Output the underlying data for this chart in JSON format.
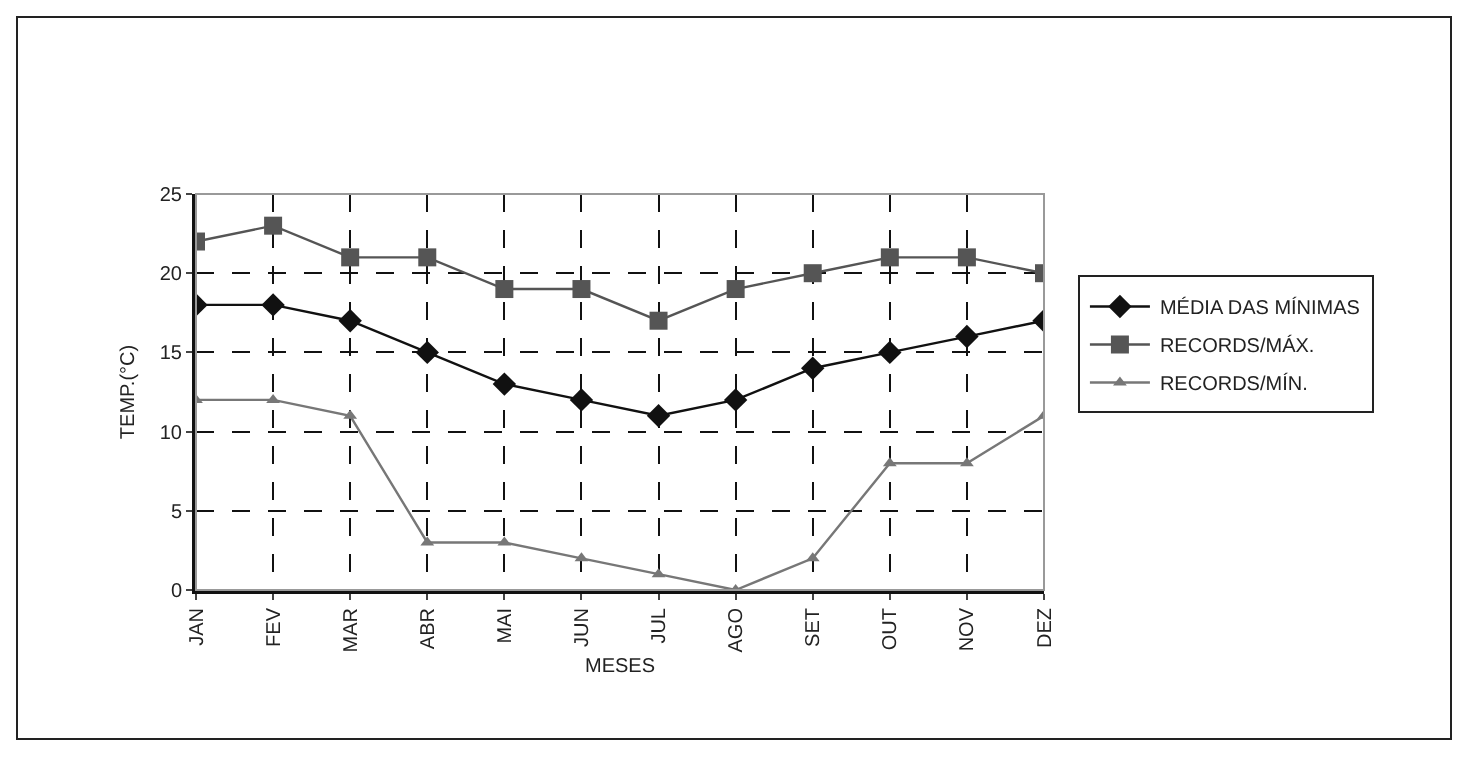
{
  "chart_data": {
    "type": "line",
    "xlabel": "MESES",
    "ylabel": "TEMP.(°C)",
    "categories": [
      "JAN",
      "FEV",
      "MAR",
      "ABR",
      "MAI",
      "JUN",
      "JUL",
      "AGO",
      "SET",
      "OUT",
      "NOV",
      "DEZ"
    ],
    "series": [
      {
        "name": "MÉDIA DAS MÍNIMAS",
        "color": "#111111",
        "marker": "diamond",
        "values": [
          18,
          18,
          17,
          15,
          13,
          12,
          11,
          12,
          14,
          15,
          16,
          17
        ]
      },
      {
        "name": "RECORDS/MÁX.",
        "color": "#555555",
        "marker": "square",
        "values": [
          22,
          23,
          21,
          21,
          19,
          19,
          17,
          19,
          20,
          21,
          21,
          20
        ]
      },
      {
        "name": "RECORDS/MÍN.",
        "color": "#777777",
        "marker": "triangle",
        "values": [
          12,
          12,
          11,
          3,
          3,
          2,
          1,
          0,
          2,
          8,
          8,
          11
        ]
      }
    ],
    "ylim": [
      0,
      25
    ],
    "yticks": [
      0,
      5,
      10,
      15,
      20,
      25
    ],
    "grid": true,
    "legend": "right",
    "line_style": "solid"
  }
}
